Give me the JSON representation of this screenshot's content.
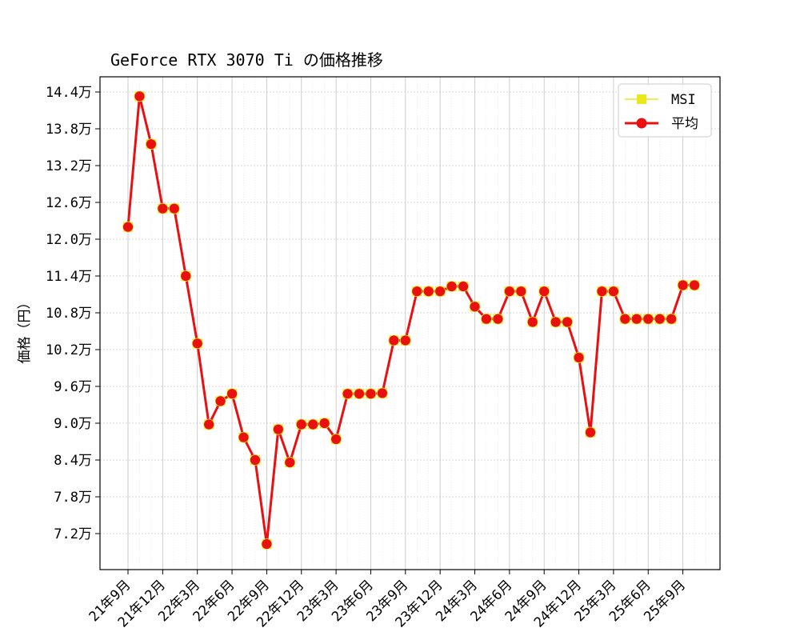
{
  "chart_data": {
    "type": "line",
    "title": "GeForce RTX 3070 Ti の価格推移",
    "ylabel": "価格（円）",
    "xlabel": "",
    "unit_suffix": "万",
    "yticks": [
      72000,
      78000,
      84000,
      90000,
      96000,
      102000,
      108000,
      114000,
      120000,
      126000,
      132000,
      138000,
      144000
    ],
    "ytick_labels": [
      "7.2万",
      "7.8万",
      "8.4万",
      "9.0万",
      "9.6万",
      "10.2万",
      "10.8万",
      "11.4万",
      "12.0万",
      "12.6万",
      "13.2万",
      "13.8万",
      "14.4万"
    ],
    "xtick_labels": [
      "21年9月",
      "21年12月",
      "22年3月",
      "22年6月",
      "22年9月",
      "22年12月",
      "23年3月",
      "23年6月",
      "23年9月",
      "23年12月",
      "24年3月",
      "24年6月",
      "24年9月",
      "24年12月",
      "25年3月",
      "25年6月",
      "25年9月"
    ],
    "x_start_month": "21年9月",
    "grid": true,
    "legend_position": "top-right",
    "series": [
      {
        "name": "MSI",
        "color": "#e8e81a",
        "marker": "square",
        "values": [
          122000,
          143300,
          135500,
          125000,
          125000,
          114000,
          103000,
          89800,
          93600,
          94800,
          87700,
          84000,
          70300,
          89000,
          83600,
          89800,
          89800,
          90000,
          87400,
          94800,
          94800,
          94800,
          94900,
          103500,
          103500,
          111500,
          111500,
          111500,
          112300,
          112300,
          109000,
          107000,
          107000,
          111500,
          111500,
          106500,
          111500,
          106500,
          106500,
          100700,
          88500,
          111500,
          111500,
          107000,
          107000,
          107000,
          107000,
          107000,
          112500,
          112500
        ]
      },
      {
        "name": "平均",
        "color": "#e81010",
        "marker": "circle",
        "values": [
          122000,
          143300,
          135500,
          125000,
          125000,
          114000,
          103000,
          89800,
          93600,
          94800,
          87700,
          84000,
          70300,
          89000,
          83600,
          89800,
          89800,
          90000,
          87400,
          94800,
          94800,
          94800,
          94900,
          103500,
          103500,
          111500,
          111500,
          111500,
          112300,
          112300,
          109000,
          107000,
          107000,
          111500,
          111500,
          106500,
          111500,
          106500,
          106500,
          100700,
          88500,
          111500,
          111500,
          107000,
          107000,
          107000,
          107000,
          107000,
          112500,
          112500
        ]
      }
    ]
  }
}
